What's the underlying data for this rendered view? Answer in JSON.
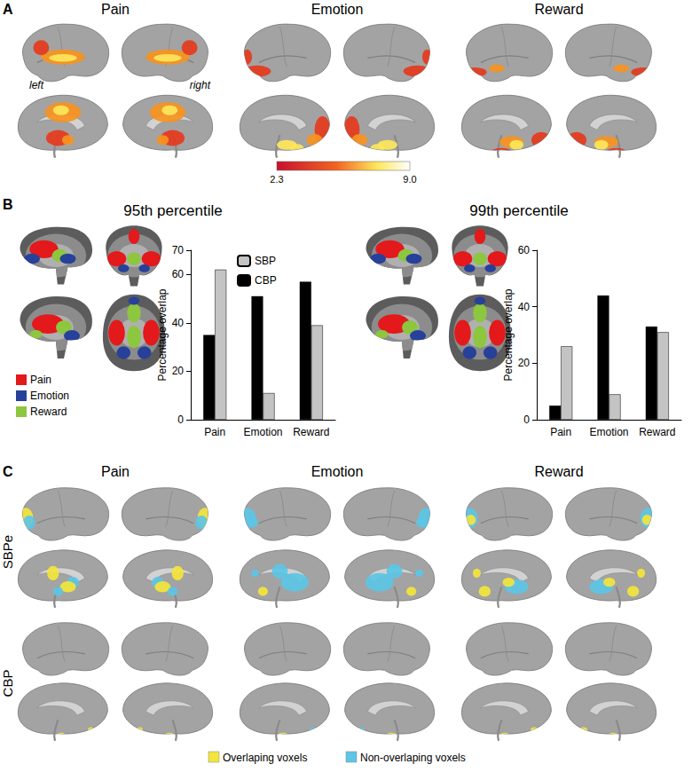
{
  "figure": {
    "panel_labels": [
      "A",
      "B",
      "C"
    ],
    "panel_a": {
      "titles": [
        "Pain",
        "Emotion",
        "Reward"
      ],
      "hemispheres": [
        "left",
        "right"
      ],
      "colorbar_labels": [
        "2.3",
        "9.0"
      ]
    },
    "panel_b": {
      "legend": [
        {
          "name": "Pain",
          "color": "#e3191c"
        },
        {
          "name": "Emotion",
          "color": "#27419a"
        },
        {
          "name": "Reward",
          "color": "#8dc63f"
        }
      ]
    },
    "panel_c": {
      "titles": [
        "Pain",
        "Emotion",
        "Reward"
      ],
      "rows": [
        "SBPe",
        "CBP"
      ],
      "legend": [
        {
          "name": "Overlaping voxels",
          "color": "#f3e53b"
        },
        {
          "name": "Non-overlaping voxels",
          "color": "#5cc6e6"
        }
      ]
    }
  },
  "chart_data": [
    {
      "type": "bar",
      "title": "95th percentile",
      "y_label": "Percentage overlap",
      "categories": [
        "Pain",
        "Emotion",
        "Reward"
      ],
      "series": [
        {
          "name": "CBP",
          "color": "#000000",
          "values": [
            35,
            51,
            57
          ]
        },
        {
          "name": "SBP",
          "color": "#c4c4c4",
          "values": [
            62,
            11,
            39
          ]
        }
      ],
      "ylim": [
        0,
        70
      ],
      "yticks": [
        0,
        20,
        40,
        60
      ],
      "grid": false,
      "legend": "upper right"
    },
    {
      "type": "bar",
      "title": "99th percentile",
      "y_label": "Percentage overlap",
      "categories": [
        "Pain",
        "Emotion",
        "Reward"
      ],
      "series": [
        {
          "name": "CBP",
          "color": "#000000",
          "values": [
            5,
            44,
            33
          ]
        },
        {
          "name": "SBP",
          "color": "#c4c4c4",
          "values": [
            26,
            9,
            31
          ]
        }
      ],
      "ylim": [
        0,
        60
      ],
      "yticks": [
        0,
        20,
        40,
        60
      ],
      "grid": false
    }
  ]
}
